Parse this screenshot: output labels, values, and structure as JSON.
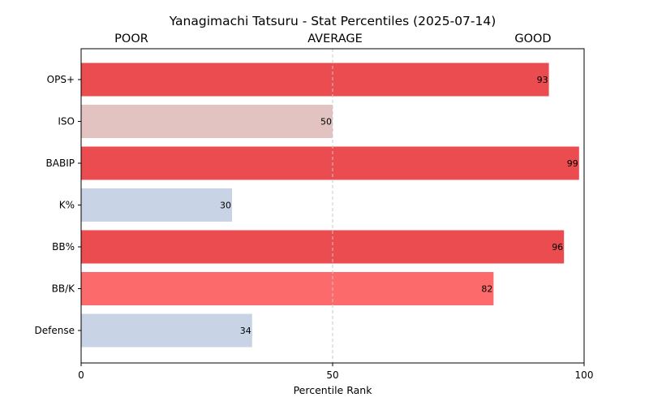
{
  "chart_data": {
    "type": "bar",
    "orientation": "horizontal",
    "title": "Yanagimachi Tatsuru - Stat Percentiles (2025-07-14)",
    "xlabel": "Percentile Rank",
    "ylabel": "",
    "xlim": [
      0,
      100
    ],
    "x_ticks": [
      "0",
      "50",
      "100"
    ],
    "zone_labels": [
      "POOR",
      "AVERAGE",
      "GOOD"
    ],
    "reference_line": 50,
    "categories": [
      "OPS+",
      "ISO",
      "BABIP",
      "K%",
      "BB%",
      "BB/K",
      "Defense"
    ],
    "values": [
      93,
      50,
      99,
      30,
      96,
      82,
      34
    ],
    "bar_colors": [
      "#eb4c4f",
      "#e3c2c2",
      "#eb4c4f",
      "#c8d4e5",
      "#eb4c4f",
      "#fd6a6b",
      "#c8d4e5"
    ],
    "grid": false,
    "legend": "none"
  }
}
